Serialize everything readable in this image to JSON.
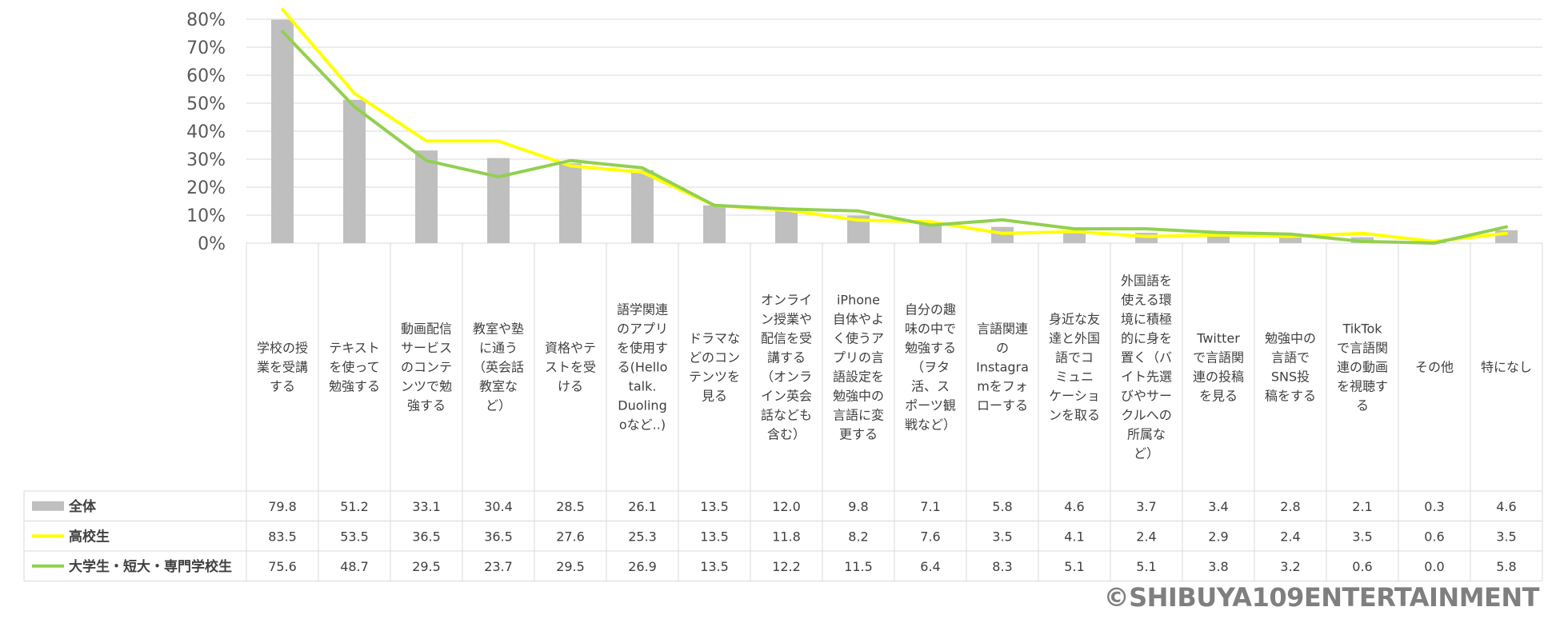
{
  "chart_data": {
    "type": "bar",
    "ylim": [
      0,
      80
    ],
    "yticks": [
      "0%",
      "10%",
      "20%",
      "30%",
      "40%",
      "50%",
      "60%",
      "70%",
      "80%"
    ],
    "grid": true,
    "categories": [
      "学校の授業を受講する",
      "テキストを使って勉強する",
      "動画配信サービスのコンテンツで勉強する",
      "教室や塾に通う（英会話教室など）",
      "資格やテストを受ける",
      "語学関連のアプリを使用する(Hello talk. Duolingoなど..)",
      "ドラマなどのコンテンツを見る",
      "オンライン授業や配信を受講する（オンライン英会話なども含む）",
      "iPhone自体やよく使うアプリの言語設定を勉強中の言語に変更する",
      "自分の趣味の中で勉強する（ヲタ活、スポーツ観戦など）",
      "言語関連のInstagramをフォローする",
      "身近な友達と外国語でコミュニケーションを取る",
      "外国語を使える環境に積極的に身を置く（バイト先選びやサークルへの所属など）",
      "Twitterで言語関連の投稿を見る",
      "勉強中の言語でSNS投稿をする",
      "TikTokで言語関連の動画を視聴する",
      "その他",
      "特になし"
    ],
    "category_lines": [
      [
        "学校の授",
        "業を受講",
        "する"
      ],
      [
        "テキスト",
        "を使って",
        "勉強する"
      ],
      [
        "動画配信",
        "サービス",
        "のコンテ",
        "ンツで勉",
        "強する"
      ],
      [
        "教室や塾",
        "に通う",
        "（英会話",
        "教室な",
        "ど）"
      ],
      [
        "資格やテ",
        "ストを受",
        "ける"
      ],
      [
        "語学関連",
        "のアプリ",
        "を使用す",
        "る(Hello",
        "talk.",
        "Duoling",
        "oなど..)"
      ],
      [
        "ドラマな",
        "どのコン",
        "テンツを",
        "見る"
      ],
      [
        "オンライ",
        "ン授業や",
        "配信を受",
        "講する",
        "（オンラ",
        "イン英会",
        "話なども",
        "含む）"
      ],
      [
        "iPhone",
        "自体やよ",
        "く使うア",
        "プリの言",
        "語設定を",
        "勉強中の",
        "言語に変",
        "更する"
      ],
      [
        "自分の趣",
        "味の中で",
        "勉強する",
        "（ヲタ",
        "活、ス",
        "ポーツ観",
        "戦など）"
      ],
      [
        "言語関連",
        "の",
        "Instagra",
        "mをフォ",
        "ローする"
      ],
      [
        "身近な友",
        "達と外国",
        "語でコ",
        "ミュニ",
        "ケーショ",
        "ンを取る"
      ],
      [
        "外国語を",
        "使える環",
        "境に積極",
        "的に身を",
        "置く（バ",
        "イト先選",
        "びやサー",
        "クルへの",
        "所属な",
        "ど）"
      ],
      [
        "Twitter",
        "で言語関",
        "連の投稿",
        "を見る"
      ],
      [
        "勉強中の",
        "言語で",
        "SNS投",
        "稿をする"
      ],
      [
        "TikTok",
        "で言語関",
        "連の動画",
        "を視聴す",
        "る"
      ],
      [
        "その他"
      ],
      [
        "特になし"
      ]
    ],
    "series": [
      {
        "name": "全体",
        "type": "bar",
        "color": "#bfbfbf",
        "values": [
          79.8,
          51.2,
          33.1,
          30.4,
          28.5,
          26.1,
          13.5,
          12.0,
          9.8,
          7.1,
          5.8,
          4.6,
          3.7,
          3.4,
          2.8,
          2.1,
          0.3,
          4.6
        ]
      },
      {
        "name": "高校生",
        "type": "line",
        "color": "#ffff00",
        "values": [
          83.5,
          53.5,
          36.5,
          36.5,
          27.6,
          25.3,
          13.5,
          11.8,
          8.2,
          7.6,
          3.5,
          4.1,
          2.4,
          2.9,
          2.4,
          3.5,
          0.6,
          3.5
        ]
      },
      {
        "name": "大学生・短大・専門学校生",
        "type": "line",
        "color": "#92d050",
        "values": [
          75.6,
          48.7,
          29.5,
          23.7,
          29.5,
          26.9,
          13.5,
          12.2,
          11.5,
          6.4,
          8.3,
          5.1,
          5.1,
          3.8,
          3.2,
          0.6,
          0.0,
          5.8
        ]
      }
    ],
    "table_values": [
      [
        "79.8",
        "51.2",
        "33.1",
        "30.4",
        "28.5",
        "26.1",
        "13.5",
        "12.0",
        "9.8",
        "7.1",
        "5.8",
        "4.6",
        "3.7",
        "3.4",
        "2.8",
        "2.1",
        "0.3",
        "4.6"
      ],
      [
        "83.5",
        "53.5",
        "36.5",
        "36.5",
        "27.6",
        "25.3",
        "13.5",
        "11.8",
        "8.2",
        "7.6",
        "3.5",
        "4.1",
        "2.4",
        "2.9",
        "2.4",
        "3.5",
        "0.6",
        "3.5"
      ],
      [
        "75.6",
        "48.7",
        "29.5",
        "23.7",
        "29.5",
        "26.9",
        "13.5",
        "12.2",
        "11.5",
        "6.4",
        "8.3",
        "5.1",
        "5.1",
        "3.8",
        "3.2",
        "0.6",
        "0.0",
        "5.8"
      ]
    ]
  },
  "copyright": "©SHIBUYA109ENTERTAINMENT"
}
